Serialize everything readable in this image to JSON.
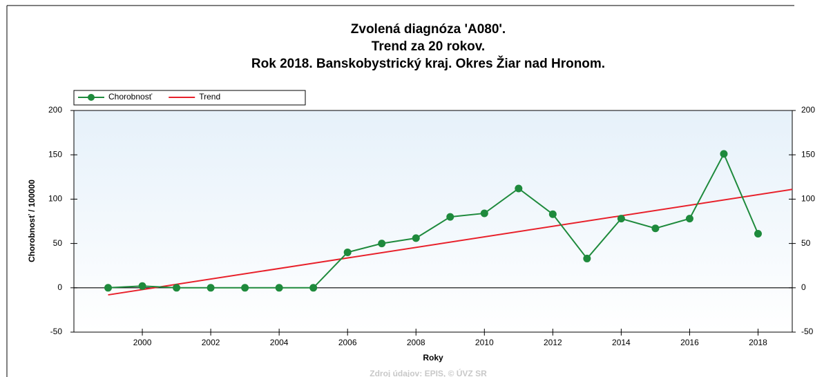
{
  "chart_data": {
    "type": "line",
    "title": [
      "Zvolená diagnóza 'A080'.",
      "Trend za 20 rokov.",
      "Rok 2018. Banskobystrický kraj. Okres Žiar nad Hronom."
    ],
    "x_label": "Roky",
    "y_label": "Chorobnosť / 100000",
    "source": "Zdroj údajov: EPIS, © ÚVZ SR",
    "series": [
      {
        "name": "Chorobnosť",
        "color": "#1e8a3c",
        "markers": true,
        "x": [
          1999,
          2000,
          2001,
          2002,
          2003,
          2004,
          2005,
          2006,
          2007,
          2008,
          2009,
          2010,
          2011,
          2012,
          2013,
          2014,
          2015,
          2016,
          2017,
          2018
        ],
        "values": [
          0,
          2,
          0,
          0,
          0,
          0,
          0,
          40,
          50,
          56,
          80,
          84,
          112,
          83,
          33,
          78,
          67,
          78,
          151,
          61
        ]
      },
      {
        "name": "Trend",
        "color": "#e8202a",
        "markers": false,
        "x": [
          1999,
          2019
        ],
        "values": [
          -8,
          111
        ]
      }
    ],
    "xlim": [
      1998,
      2019
    ],
    "xticks": [
      2000,
      2002,
      2004,
      2006,
      2008,
      2010,
      2012,
      2014,
      2016,
      2018
    ],
    "ylim": [
      -50,
      200
    ],
    "yticks": [
      -50,
      0,
      50,
      100,
      150,
      200
    ],
    "y2lim": [
      -50,
      200
    ],
    "y2ticks": [
      -50,
      0,
      50,
      100,
      150,
      200
    ]
  }
}
